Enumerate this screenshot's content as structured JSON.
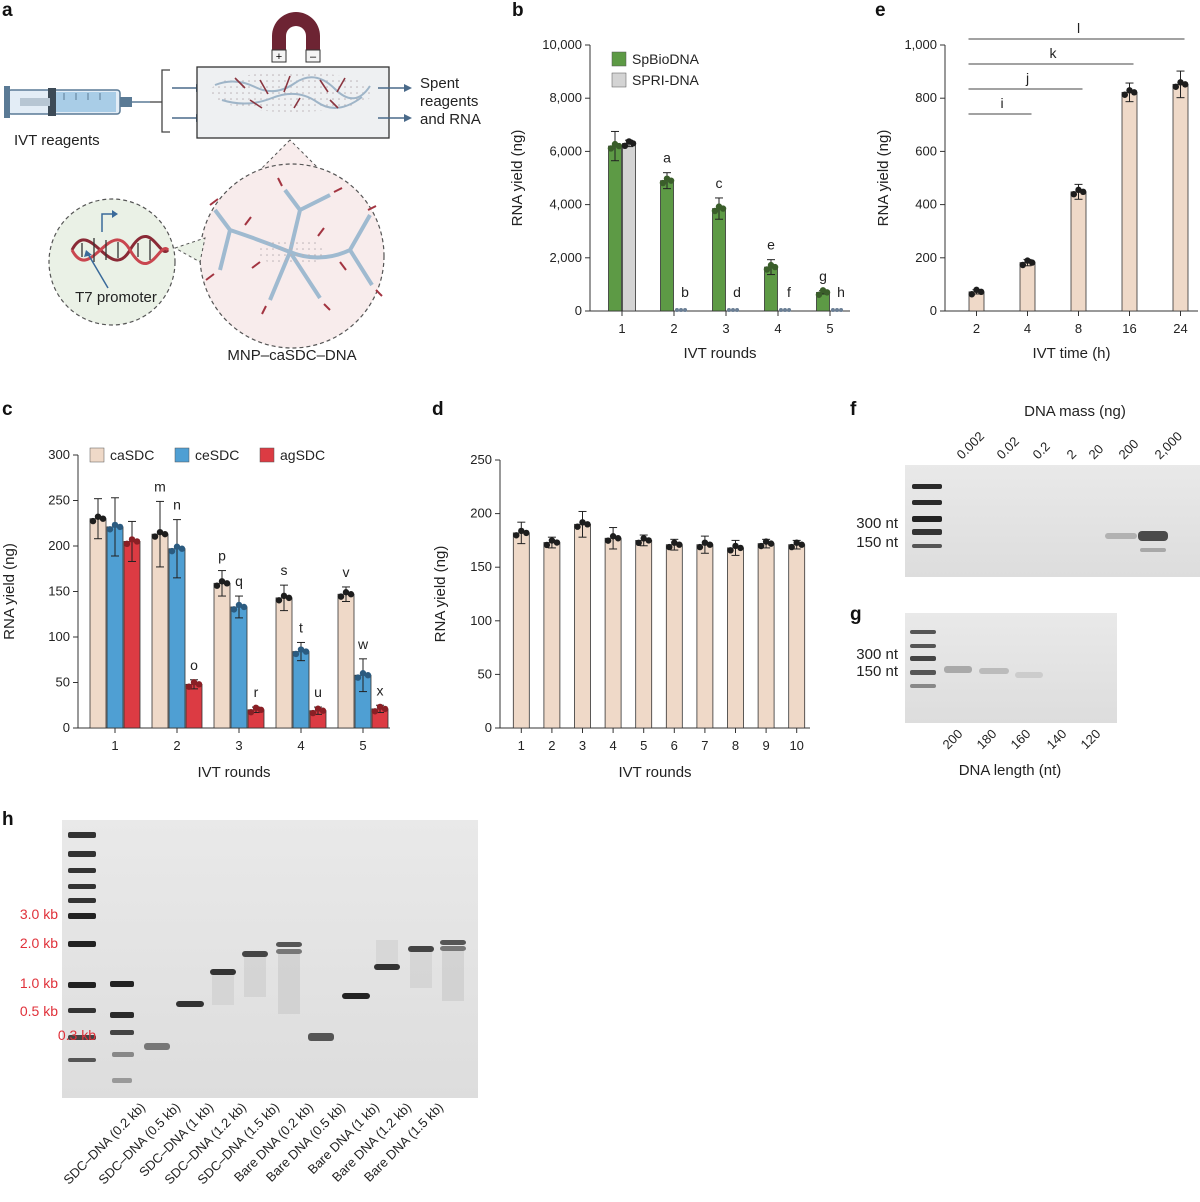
{
  "panel_labels": {
    "a": "a",
    "b": "b",
    "c": "c",
    "d": "d",
    "e": "e",
    "f": "f",
    "g": "g",
    "h": "h"
  },
  "diagram_a": {
    "left_label": "IVT reagents",
    "right_label_lines": [
      "Spent",
      "reagents",
      "and RNA"
    ],
    "promoter_label": "T7 promoter",
    "complex_label": "MNP–caSDC–DNA",
    "magnet_plus": "+",
    "magnet_minus": "–"
  },
  "gel_f": {
    "title": "DNA mass (ng)",
    "lanes": [
      "0.002",
      "0.02",
      "0.2",
      "2",
      "20",
      "200",
      "2,000"
    ],
    "markers": [
      "300 nt",
      "150 nt"
    ]
  },
  "gel_g": {
    "lanes": [
      "200",
      "180",
      "160",
      "140",
      "120"
    ],
    "markers": [
      "300 nt",
      "150 nt"
    ],
    "xlabel": "DNA length (nt)"
  },
  "gel_h": {
    "markers": [
      "3.0 kb",
      "2.0 kb",
      "1.0 kb",
      "0.5 kb",
      "0.3 kb"
    ],
    "lanes": [
      "SDC–DNA (0.2 kb)",
      "SDC–DNA (0.5 kb)",
      "SDC–DNA (1 kb)",
      "SDC–DNA (1.2 kb)",
      "SDC–DNA (1.5 kb)",
      "Bare DNA (0.2 kb)",
      "Bare DNA (0.5 kb)",
      "Bare DNA (1 kb)",
      "Bare DNA (1.2 kb)",
      "Bare DNA (1.5 kb)"
    ]
  },
  "colors": {
    "green": "#5d9a45",
    "grey": "#d4d4d4",
    "beige": "#efd9c8",
    "blue": "#4f9fd3",
    "red": "#dc3b43",
    "dot": "#222222"
  },
  "chart_data": [
    {
      "panel": "b",
      "type": "bar",
      "categories": [
        "1",
        "2",
        "3",
        "4",
        "5"
      ],
      "xlabel": "IVT rounds",
      "ylabel": "RNA yield (ng)",
      "ylim": [
        0,
        10000
      ],
      "yticks": [
        "0",
        "2,000",
        "4,000",
        "6,000",
        "8,000",
        "10,000"
      ],
      "legend_placement": "top-left",
      "series": [
        {
          "name": "SpBioDNA",
          "color": "#5d9a45",
          "values": [
            6200,
            4900,
            3850,
            1650,
            700
          ],
          "err": [
            550,
            300,
            400,
            280,
            60
          ]
        },
        {
          "name": "SPRI-DNA",
          "color": "#d4d4d4",
          "values": [
            6300,
            0,
            0,
            0,
            0
          ],
          "err": [
            120,
            0,
            0,
            0,
            0
          ]
        }
      ],
      "sig_letters": [
        [
          "",
          ""
        ],
        [
          "a",
          "b"
        ],
        [
          "c",
          "d"
        ],
        [
          "e",
          "f"
        ],
        [
          "g",
          "h"
        ]
      ]
    },
    {
      "panel": "e",
      "type": "bar",
      "categories": [
        "2",
        "4",
        "8",
        "16",
        "24"
      ],
      "xlabel": "IVT time (h)",
      "ylabel": "RNA yield (ng)",
      "ylim": [
        0,
        1000
      ],
      "yticks": [
        "0",
        "200",
        "400",
        "600",
        "800",
        "1,000"
      ],
      "series": [
        {
          "name": "",
          "color": "#efd9c8",
          "values": [
            72,
            182,
            448,
            822,
            852
          ],
          "err": [
            8,
            12,
            28,
            35,
            50
          ]
        }
      ],
      "brackets": [
        "i",
        "j",
        "k",
        "l"
      ]
    },
    {
      "panel": "c",
      "type": "bar",
      "categories": [
        "1",
        "2",
        "3",
        "4",
        "5"
      ],
      "xlabel": "IVT rounds",
      "ylabel": "RNA yield (ng)",
      "ylim": [
        0,
        300
      ],
      "yticks": [
        "0",
        "50",
        "100",
        "150",
        "200",
        "250",
        "300"
      ],
      "legend_placement": "top",
      "series": [
        {
          "name": "caSDC",
          "color": "#efd9c8",
          "values": [
            230,
            213,
            159,
            143,
            147
          ],
          "err": [
            22,
            36,
            14,
            14,
            8
          ]
        },
        {
          "name": "ceSDC",
          "color": "#4f9fd3",
          "values": [
            221,
            197,
            133,
            84,
            58
          ],
          "err": [
            32,
            32,
            12,
            10,
            18
          ]
        },
        {
          "name": "agSDC",
          "color": "#dc3b43",
          "values": [
            205,
            48,
            20,
            19,
            21
          ],
          "err": [
            22,
            5,
            3,
            4,
            4
          ]
        }
      ],
      "sig_letters": [
        [
          "",
          "",
          ""
        ],
        [
          "m",
          "n",
          "o"
        ],
        [
          "p",
          "q",
          "r"
        ],
        [
          "s",
          "t",
          "u"
        ],
        [
          "v",
          "w",
          "x"
        ]
      ]
    },
    {
      "panel": "d",
      "type": "bar",
      "categories": [
        "1",
        "2",
        "3",
        "4",
        "5",
        "6",
        "7",
        "8",
        "9",
        "10"
      ],
      "xlabel": "IVT rounds",
      "ylabel": "RNA yield (ng)",
      "ylim": [
        0,
        250
      ],
      "yticks": [
        "0",
        "50",
        "100",
        "150",
        "200",
        "250"
      ],
      "series": [
        {
          "name": "",
          "color": "#efd9c8",
          "values": [
            182,
            173,
            190,
            177,
            175,
            171,
            171,
            168,
            172,
            171
          ],
          "err": [
            10,
            5,
            12,
            10,
            5,
            5,
            8,
            7,
            4,
            4
          ]
        }
      ]
    }
  ]
}
